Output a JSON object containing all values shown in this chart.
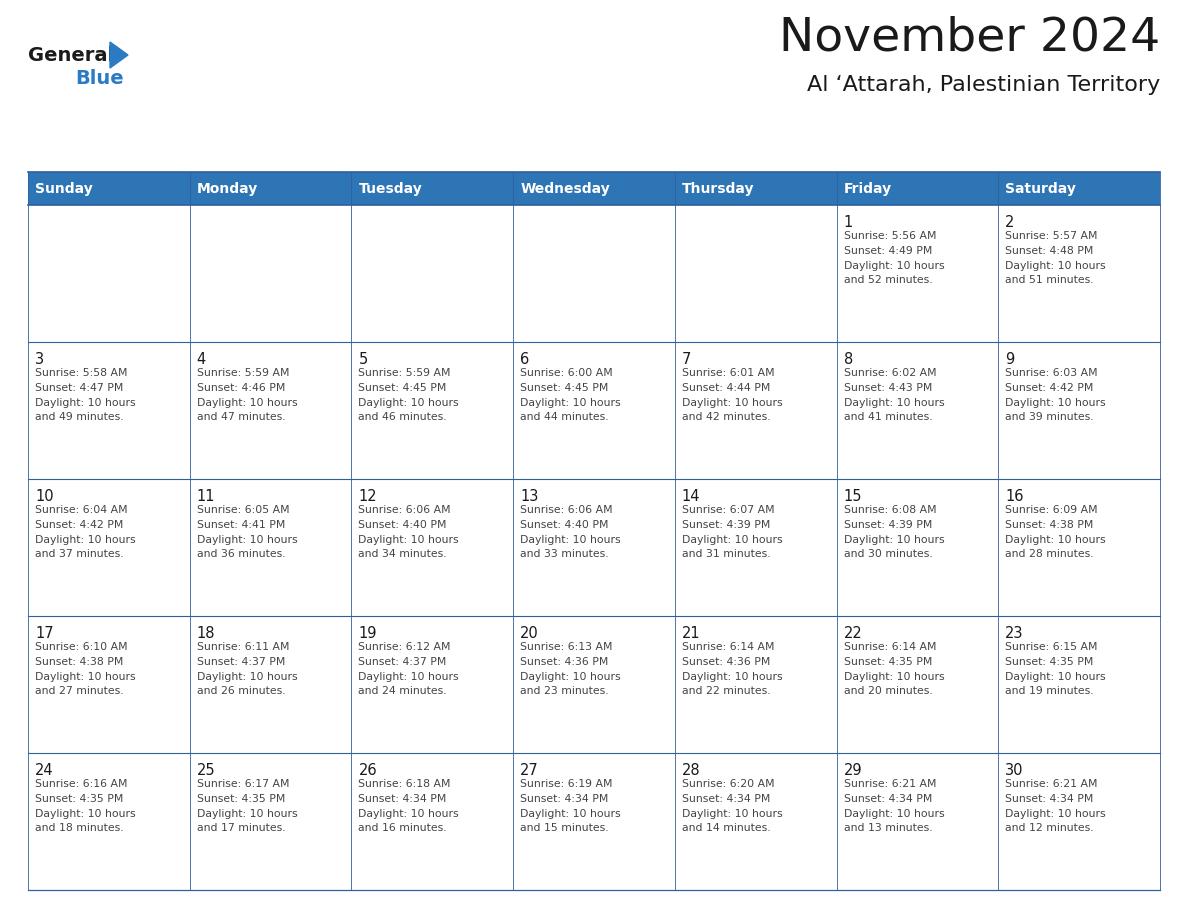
{
  "title": "November 2024",
  "subtitle": "Al ‘Attarah, Palestinian Territory",
  "days_of_week": [
    "Sunday",
    "Monday",
    "Tuesday",
    "Wednesday",
    "Thursday",
    "Friday",
    "Saturday"
  ],
  "header_bg_color": "#2e75b6",
  "header_text_color": "#ffffff",
  "cell_bg_color_light": "#f2f2f2",
  "cell_bg_color_white": "#ffffff",
  "grid_line_color": "#2e5f9e",
  "title_color": "#1a1a1a",
  "subtitle_color": "#1a1a1a",
  "day_number_color": "#1a1a1a",
  "cell_text_color": "#444444",
  "logo_general_color": "#1a1a1a",
  "logo_blue_color": "#2b7bc4",
  "weeks": [
    {
      "days": [
        {
          "date": "",
          "info": ""
        },
        {
          "date": "",
          "info": ""
        },
        {
          "date": "",
          "info": ""
        },
        {
          "date": "",
          "info": ""
        },
        {
          "date": "",
          "info": ""
        },
        {
          "date": "1",
          "info": "Sunrise: 5:56 AM\nSunset: 4:49 PM\nDaylight: 10 hours\nand 52 minutes."
        },
        {
          "date": "2",
          "info": "Sunrise: 5:57 AM\nSunset: 4:48 PM\nDaylight: 10 hours\nand 51 minutes."
        }
      ]
    },
    {
      "days": [
        {
          "date": "3",
          "info": "Sunrise: 5:58 AM\nSunset: 4:47 PM\nDaylight: 10 hours\nand 49 minutes."
        },
        {
          "date": "4",
          "info": "Sunrise: 5:59 AM\nSunset: 4:46 PM\nDaylight: 10 hours\nand 47 minutes."
        },
        {
          "date": "5",
          "info": "Sunrise: 5:59 AM\nSunset: 4:45 PM\nDaylight: 10 hours\nand 46 minutes."
        },
        {
          "date": "6",
          "info": "Sunrise: 6:00 AM\nSunset: 4:45 PM\nDaylight: 10 hours\nand 44 minutes."
        },
        {
          "date": "7",
          "info": "Sunrise: 6:01 AM\nSunset: 4:44 PM\nDaylight: 10 hours\nand 42 minutes."
        },
        {
          "date": "8",
          "info": "Sunrise: 6:02 AM\nSunset: 4:43 PM\nDaylight: 10 hours\nand 41 minutes."
        },
        {
          "date": "9",
          "info": "Sunrise: 6:03 AM\nSunset: 4:42 PM\nDaylight: 10 hours\nand 39 minutes."
        }
      ]
    },
    {
      "days": [
        {
          "date": "10",
          "info": "Sunrise: 6:04 AM\nSunset: 4:42 PM\nDaylight: 10 hours\nand 37 minutes."
        },
        {
          "date": "11",
          "info": "Sunrise: 6:05 AM\nSunset: 4:41 PM\nDaylight: 10 hours\nand 36 minutes."
        },
        {
          "date": "12",
          "info": "Sunrise: 6:06 AM\nSunset: 4:40 PM\nDaylight: 10 hours\nand 34 minutes."
        },
        {
          "date": "13",
          "info": "Sunrise: 6:06 AM\nSunset: 4:40 PM\nDaylight: 10 hours\nand 33 minutes."
        },
        {
          "date": "14",
          "info": "Sunrise: 6:07 AM\nSunset: 4:39 PM\nDaylight: 10 hours\nand 31 minutes."
        },
        {
          "date": "15",
          "info": "Sunrise: 6:08 AM\nSunset: 4:39 PM\nDaylight: 10 hours\nand 30 minutes."
        },
        {
          "date": "16",
          "info": "Sunrise: 6:09 AM\nSunset: 4:38 PM\nDaylight: 10 hours\nand 28 minutes."
        }
      ]
    },
    {
      "days": [
        {
          "date": "17",
          "info": "Sunrise: 6:10 AM\nSunset: 4:38 PM\nDaylight: 10 hours\nand 27 minutes."
        },
        {
          "date": "18",
          "info": "Sunrise: 6:11 AM\nSunset: 4:37 PM\nDaylight: 10 hours\nand 26 minutes."
        },
        {
          "date": "19",
          "info": "Sunrise: 6:12 AM\nSunset: 4:37 PM\nDaylight: 10 hours\nand 24 minutes."
        },
        {
          "date": "20",
          "info": "Sunrise: 6:13 AM\nSunset: 4:36 PM\nDaylight: 10 hours\nand 23 minutes."
        },
        {
          "date": "21",
          "info": "Sunrise: 6:14 AM\nSunset: 4:36 PM\nDaylight: 10 hours\nand 22 minutes."
        },
        {
          "date": "22",
          "info": "Sunrise: 6:14 AM\nSunset: 4:35 PM\nDaylight: 10 hours\nand 20 minutes."
        },
        {
          "date": "23",
          "info": "Sunrise: 6:15 AM\nSunset: 4:35 PM\nDaylight: 10 hours\nand 19 minutes."
        }
      ]
    },
    {
      "days": [
        {
          "date": "24",
          "info": "Sunrise: 6:16 AM\nSunset: 4:35 PM\nDaylight: 10 hours\nand 18 minutes."
        },
        {
          "date": "25",
          "info": "Sunrise: 6:17 AM\nSunset: 4:35 PM\nDaylight: 10 hours\nand 17 minutes."
        },
        {
          "date": "26",
          "info": "Sunrise: 6:18 AM\nSunset: 4:34 PM\nDaylight: 10 hours\nand 16 minutes."
        },
        {
          "date": "27",
          "info": "Sunrise: 6:19 AM\nSunset: 4:34 PM\nDaylight: 10 hours\nand 15 minutes."
        },
        {
          "date": "28",
          "info": "Sunrise: 6:20 AM\nSunset: 4:34 PM\nDaylight: 10 hours\nand 14 minutes."
        },
        {
          "date": "29",
          "info": "Sunrise: 6:21 AM\nSunset: 4:34 PM\nDaylight: 10 hours\nand 13 minutes."
        },
        {
          "date": "30",
          "info": "Sunrise: 6:21 AM\nSunset: 4:34 PM\nDaylight: 10 hours\nand 12 minutes."
        }
      ]
    }
  ]
}
